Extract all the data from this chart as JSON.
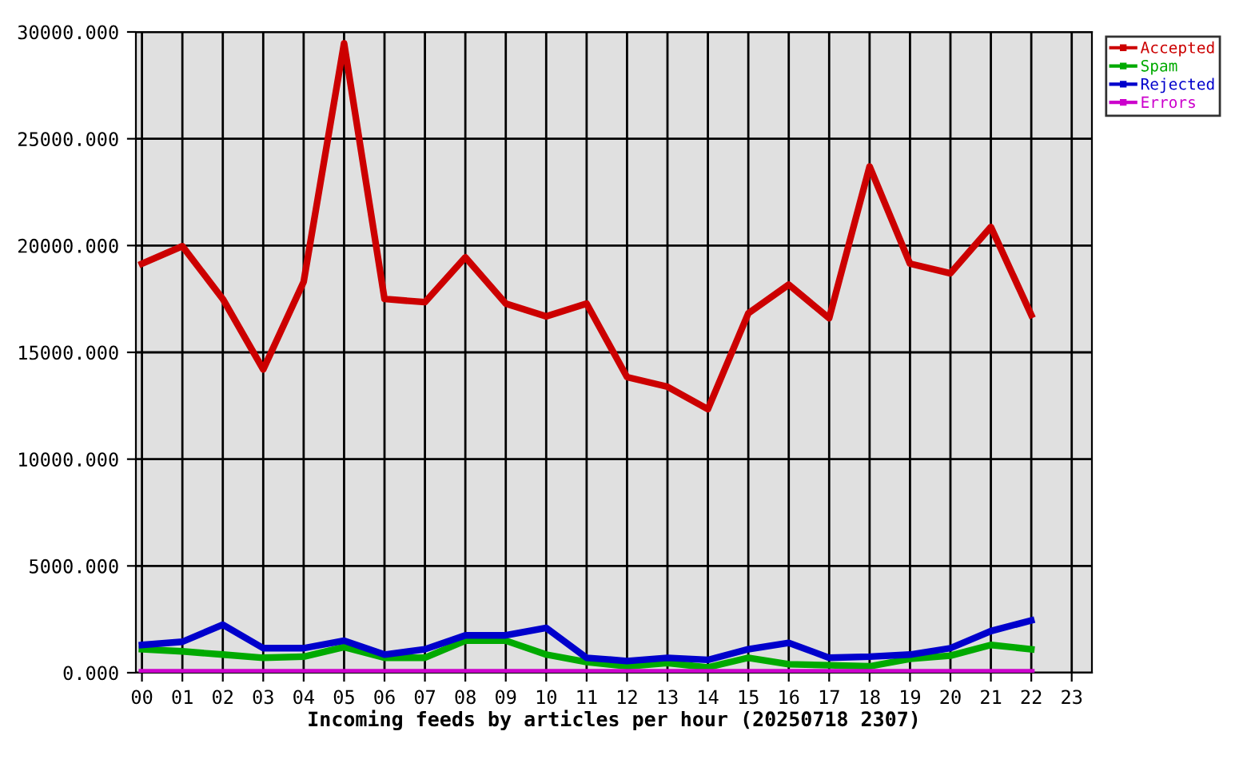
{
  "chart_data": {
    "type": "line",
    "xlabel": "Incoming feeds by articles per hour (20250718 2307)",
    "categories": [
      "00",
      "01",
      "02",
      "03",
      "04",
      "05",
      "06",
      "07",
      "08",
      "09",
      "10",
      "11",
      "12",
      "13",
      "14",
      "15",
      "16",
      "17",
      "18",
      "19",
      "20",
      "21",
      "22",
      "23"
    ],
    "series": [
      {
        "name": "Accepted",
        "color": "#cc0000",
        "values": [
          19150,
          19970,
          17500,
          14200,
          18300,
          29470,
          17500,
          17350,
          19450,
          17280,
          16680,
          17280,
          13840,
          13390,
          12340,
          16830,
          18170,
          16600,
          23700,
          19150,
          18700,
          20870,
          16750,
          null
        ]
      },
      {
        "name": "Spam",
        "color": "#00aa00",
        "values": [
          1100,
          1000,
          850,
          700,
          750,
          1200,
          700,
          700,
          1500,
          1500,
          850,
          500,
          300,
          450,
          250,
          700,
          400,
          350,
          300,
          650,
          800,
          1300,
          1100,
          null
        ]
      },
      {
        "name": "Rejected",
        "color": "#0000cc",
        "values": [
          1300,
          1450,
          2250,
          1150,
          1150,
          1500,
          850,
          1100,
          1750,
          1750,
          2100,
          700,
          550,
          700,
          600,
          1100,
          1400,
          700,
          750,
          850,
          1150,
          1950,
          2450,
          null
        ]
      },
      {
        "name": "Errors",
        "color": "#cc00cc",
        "values": [
          20,
          20,
          20,
          20,
          20,
          20,
          20,
          20,
          20,
          20,
          20,
          20,
          20,
          20,
          20,
          20,
          20,
          20,
          20,
          20,
          20,
          20,
          20,
          null
        ]
      }
    ],
    "ylim": [
      0,
      30000
    ],
    "yticks": [
      {
        "value": 0,
        "label": "0.000"
      },
      {
        "value": 5000,
        "label": "5000.000"
      },
      {
        "value": 10000,
        "label": "10000.000"
      },
      {
        "value": 15000,
        "label": "15000.000"
      },
      {
        "value": 20000,
        "label": "20000.000"
      },
      {
        "value": 25000,
        "label": "25000.000"
      },
      {
        "value": 30000,
        "label": "30000.000"
      }
    ],
    "grid": true,
    "legend": "right",
    "marker": "none",
    "line_style": "solid"
  }
}
